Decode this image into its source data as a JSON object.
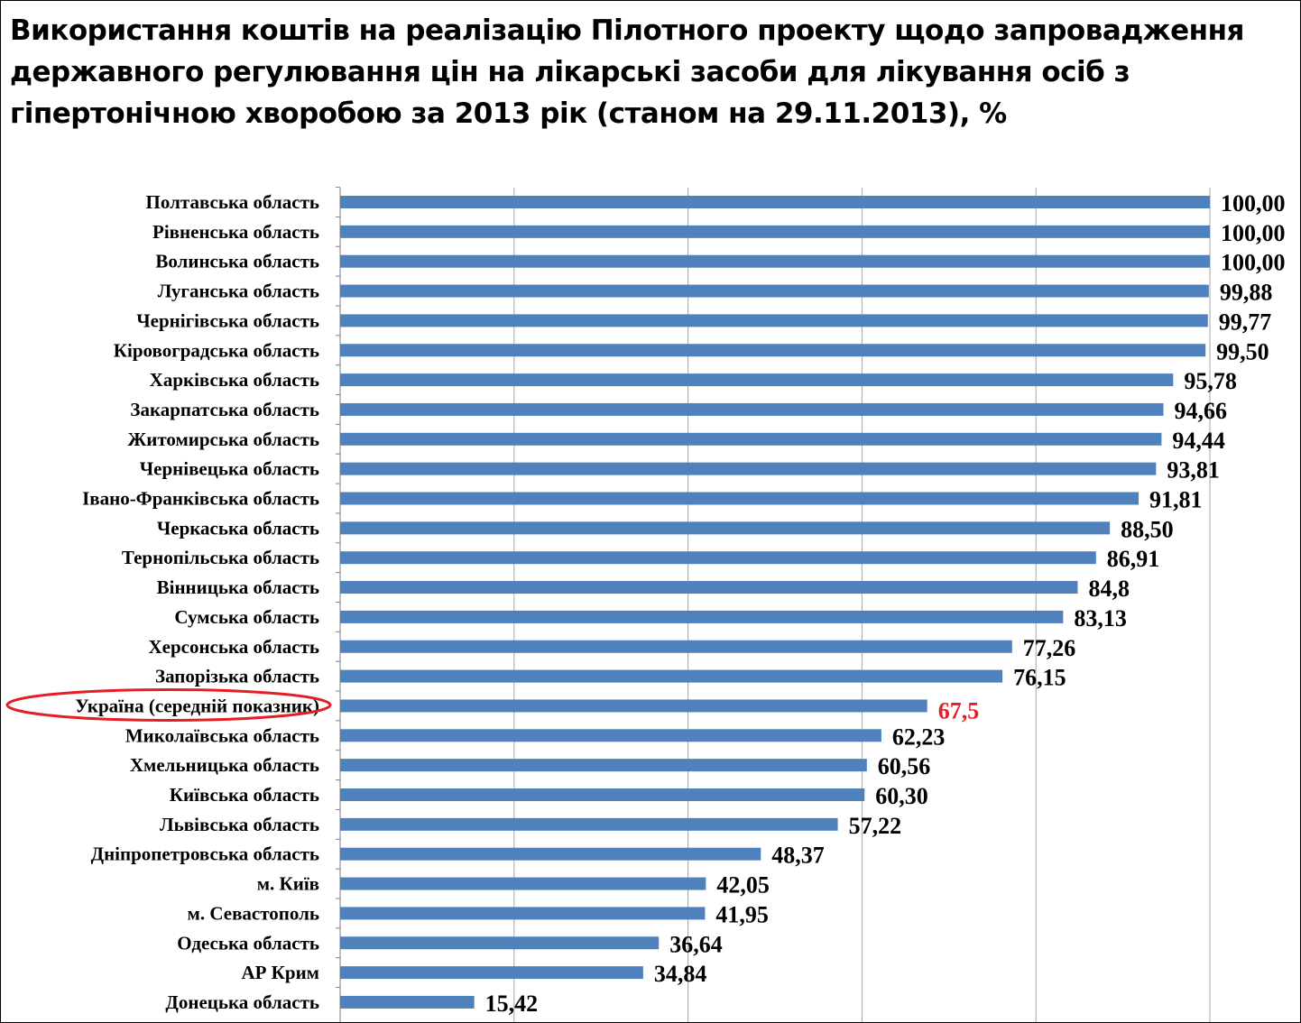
{
  "colors": {
    "bar": "#4f81bd",
    "grid": "#a6a6a6",
    "highlight": "#e31e24"
  },
  "chart_data": {
    "type": "bar",
    "orientation": "horizontal",
    "title": "Використання коштів на реалізацію Пілотного проекту щодо запровадження державного регулювання цін на лікарські засоби для лікування осіб з гіпертонічною хворобою за 2013 рік  (станом на 29.11.2013), %",
    "xlim": [
      0,
      100
    ],
    "grid": true,
    "categories": [
      "Полтавська область",
      "Рівненська область",
      "Волинська область",
      "Луганська область",
      "Чернігівська область",
      "Кіровоградська область",
      "Харківська область",
      "Закарпатська область",
      "Житомирська область",
      "Чернівецька область",
      "Івано-Франківська область",
      "Черкаська область",
      "Тернопільська область",
      "Вінницька область",
      "Сумська область",
      "Херсонська область",
      "Запорізька область",
      "Україна (середній показник)",
      "Миколаївська область",
      "Хмельницька область",
      "Київська область",
      "Львівська область",
      "Дніпропетровська область",
      "м. Київ",
      "м. Севастополь",
      "Одеська область",
      "АР Крим",
      "Донецька область"
    ],
    "values": [
      100,
      100,
      100,
      99.88,
      99.77,
      99.5,
      95.78,
      94.66,
      94.44,
      93.81,
      91.81,
      88.5,
      86.91,
      84.8,
      83.13,
      77.26,
      76.15,
      67.5,
      62.23,
      60.56,
      60.3,
      57.22,
      48.37,
      42.05,
      41.95,
      36.64,
      34.84,
      15.42
    ],
    "data_labels": [
      "100,00",
      "100,00",
      "100,00",
      "99,88",
      "99,77",
      "99,50",
      "95,78",
      "94,66",
      "94,44",
      "93,81",
      "91,81",
      "88,50",
      "86,91",
      "84,8",
      "83,13",
      "77,26",
      "76,15",
      "67,5",
      "62,23",
      "60,56",
      "60,30",
      "57,22",
      "48,37",
      "42,05",
      "41,95",
      "36,64",
      "34,84",
      "15,42"
    ],
    "highlight": "Україна (середній показник)"
  }
}
